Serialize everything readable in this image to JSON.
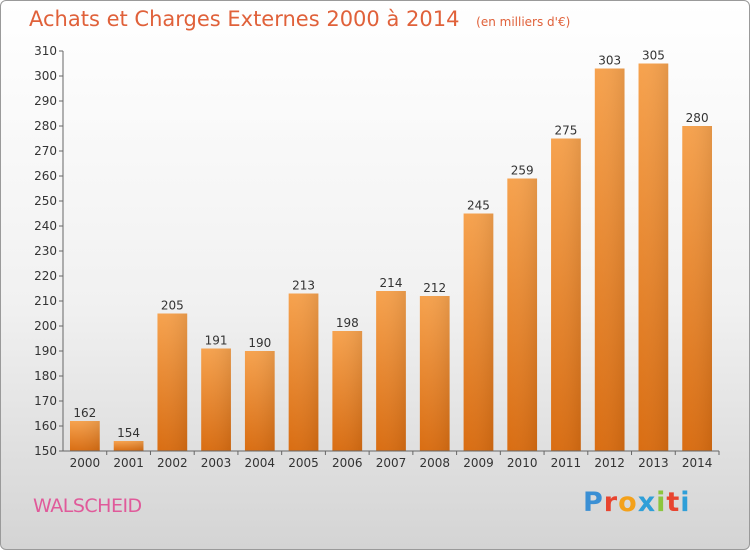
{
  "title": "Achats et Charges Externes 2000 à 2014",
  "subtitle": "(en milliers d'€)",
  "city": "WALSCHEID",
  "logo": {
    "letters": [
      "P",
      "r",
      "o",
      "x",
      "i",
      "t",
      "i"
    ],
    "colors": [
      "#3a8fd4",
      "#e8442f",
      "#f4a11a",
      "#2f9fd8",
      "#8cc63e",
      "#e8442f",
      "#2f9fd8"
    ]
  },
  "chart_data": {
    "type": "bar",
    "categories": [
      "2000",
      "2001",
      "2002",
      "2003",
      "2004",
      "2005",
      "2006",
      "2007",
      "2008",
      "2009",
      "2010",
      "2011",
      "2012",
      "2013",
      "2014"
    ],
    "values": [
      162,
      154,
      205,
      191,
      190,
      213,
      198,
      214,
      212,
      245,
      259,
      275,
      303,
      305,
      280
    ],
    "ylim": [
      150,
      310
    ],
    "yticks": [
      150,
      160,
      170,
      180,
      190,
      200,
      210,
      220,
      230,
      240,
      250,
      260,
      270,
      280,
      290,
      300,
      310
    ],
    "grid": false,
    "bar_color": "#ef8a2c"
  }
}
